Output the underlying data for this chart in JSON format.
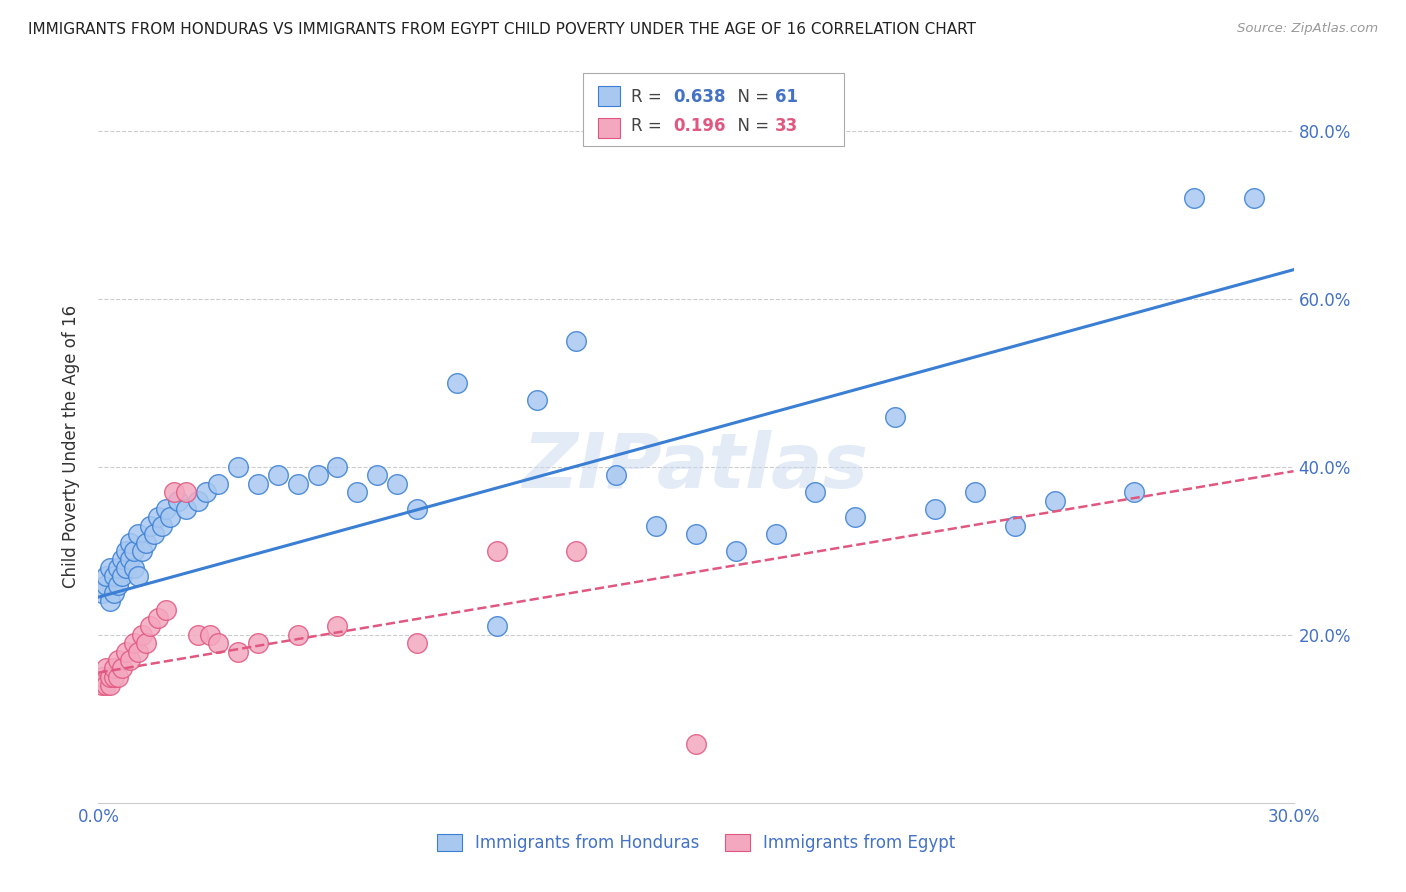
{
  "title": "IMMIGRANTS FROM HONDURAS VS IMMIGRANTS FROM EGYPT CHILD POVERTY UNDER THE AGE OF 16 CORRELATION CHART",
  "source": "Source: ZipAtlas.com",
  "ylabel": "Child Poverty Under the Age of 16",
  "xlim": [
    0.0,
    0.3
  ],
  "ylim": [
    0.0,
    0.85
  ],
  "yticks": [
    0.2,
    0.4,
    0.6,
    0.8
  ],
  "ytick_labels": [
    "20.0%",
    "40.0%",
    "60.0%",
    "80.0%"
  ],
  "xticks": [
    0.0,
    0.05,
    0.1,
    0.15,
    0.2,
    0.25,
    0.3
  ],
  "xtick_labels": [
    "0.0%",
    "",
    "",
    "",
    "",
    "",
    "30.0%"
  ],
  "honduras_color": "#a8c8f0",
  "egypt_color": "#f4a8c0",
  "trend_honduras_color": "#3a7fd4",
  "trend_egypt_color": "#e05880",
  "R_honduras": 0.638,
  "N_honduras": 61,
  "R_egypt": 0.196,
  "N_egypt": 33,
  "watermark": "ZIPatlas",
  "legend_label_honduras": "Immigrants from Honduras",
  "legend_label_egypt": "Immigrants from Egypt",
  "honduras_x": [
    0.001,
    0.002,
    0.002,
    0.003,
    0.003,
    0.004,
    0.004,
    0.005,
    0.005,
    0.006,
    0.006,
    0.007,
    0.007,
    0.008,
    0.008,
    0.009,
    0.009,
    0.01,
    0.01,
    0.011,
    0.012,
    0.013,
    0.014,
    0.015,
    0.016,
    0.017,
    0.018,
    0.02,
    0.022,
    0.025,
    0.027,
    0.03,
    0.035,
    0.04,
    0.045,
    0.05,
    0.055,
    0.06,
    0.065,
    0.07,
    0.075,
    0.08,
    0.09,
    0.1,
    0.11,
    0.12,
    0.13,
    0.14,
    0.15,
    0.16,
    0.17,
    0.18,
    0.19,
    0.2,
    0.21,
    0.22,
    0.23,
    0.24,
    0.26,
    0.275,
    0.29
  ],
  "honduras_y": [
    0.25,
    0.26,
    0.27,
    0.24,
    0.28,
    0.25,
    0.27,
    0.26,
    0.28,
    0.27,
    0.29,
    0.28,
    0.3,
    0.29,
    0.31,
    0.28,
    0.3,
    0.27,
    0.32,
    0.3,
    0.31,
    0.33,
    0.32,
    0.34,
    0.33,
    0.35,
    0.34,
    0.36,
    0.35,
    0.36,
    0.37,
    0.38,
    0.4,
    0.38,
    0.39,
    0.38,
    0.39,
    0.4,
    0.37,
    0.39,
    0.38,
    0.35,
    0.5,
    0.21,
    0.48,
    0.55,
    0.39,
    0.33,
    0.32,
    0.3,
    0.32,
    0.37,
    0.34,
    0.46,
    0.35,
    0.37,
    0.33,
    0.36,
    0.37,
    0.72,
    0.72
  ],
  "egypt_x": [
    0.001,
    0.001,
    0.002,
    0.002,
    0.003,
    0.003,
    0.004,
    0.004,
    0.005,
    0.005,
    0.006,
    0.007,
    0.008,
    0.009,
    0.01,
    0.011,
    0.012,
    0.013,
    0.015,
    0.017,
    0.019,
    0.022,
    0.025,
    0.028,
    0.03,
    0.035,
    0.04,
    0.05,
    0.06,
    0.08,
    0.1,
    0.12,
    0.15
  ],
  "egypt_y": [
    0.14,
    0.15,
    0.14,
    0.16,
    0.14,
    0.15,
    0.15,
    0.16,
    0.15,
    0.17,
    0.16,
    0.18,
    0.17,
    0.19,
    0.18,
    0.2,
    0.19,
    0.21,
    0.22,
    0.23,
    0.37,
    0.37,
    0.2,
    0.2,
    0.19,
    0.18,
    0.19,
    0.2,
    0.21,
    0.19,
    0.3,
    0.3,
    0.07
  ],
  "trend_h_x0": 0.0,
  "trend_h_y0": 0.245,
  "trend_h_x1": 0.3,
  "trend_h_y1": 0.635,
  "trend_e_x0": 0.0,
  "trend_e_y0": 0.155,
  "trend_e_x1": 0.3,
  "trend_e_y1": 0.395
}
